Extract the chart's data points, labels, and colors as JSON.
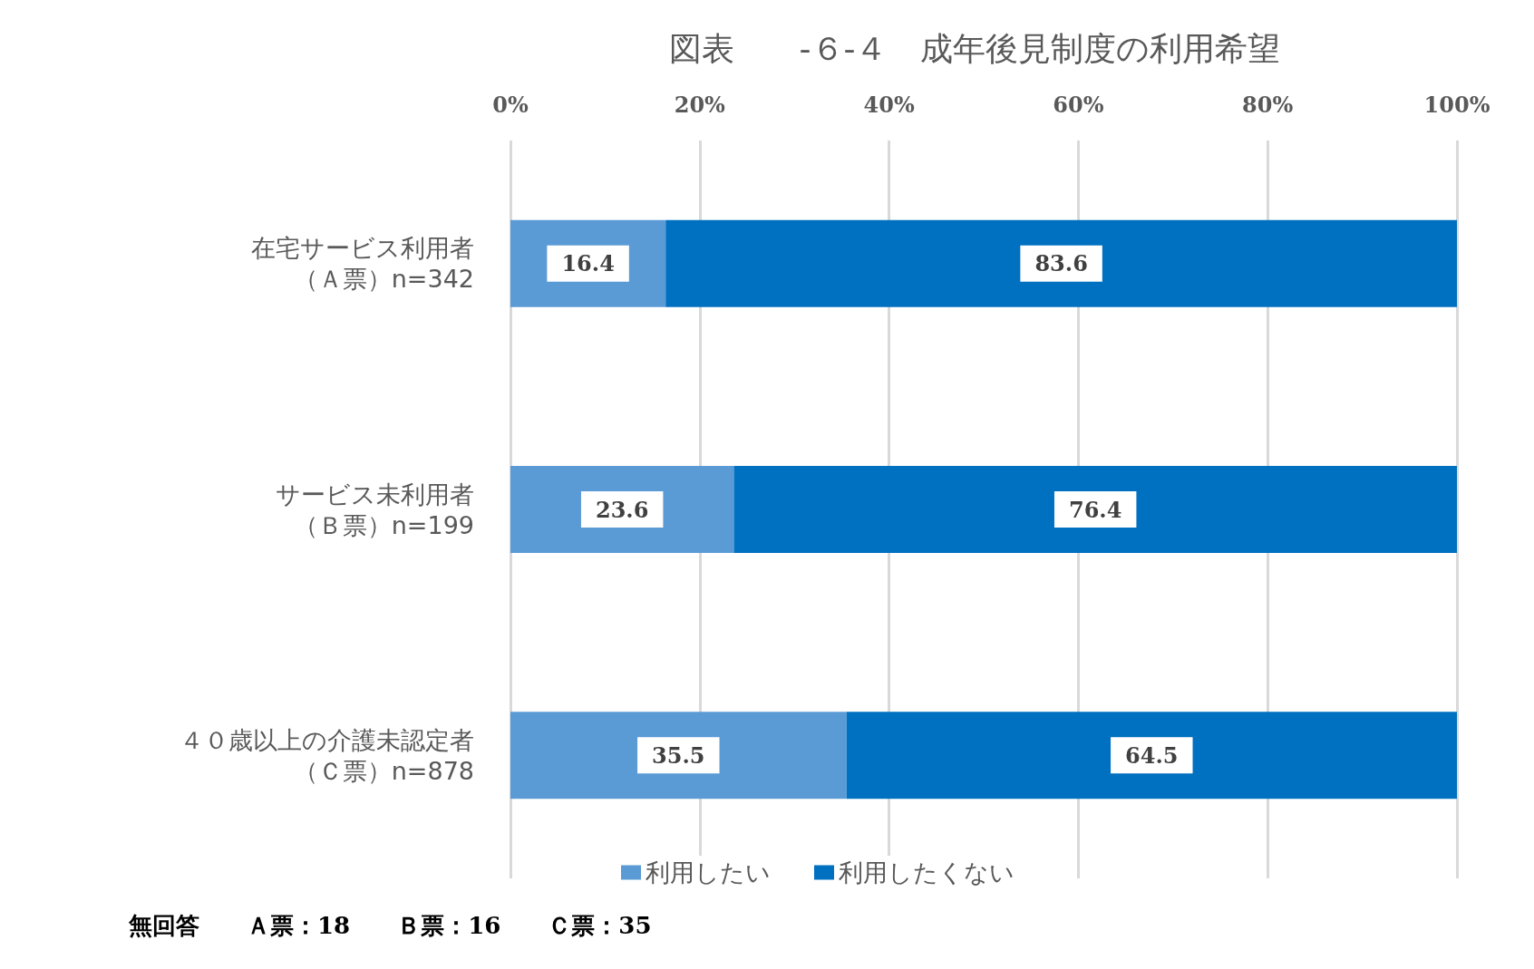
{
  "chart_data": {
    "type": "bar",
    "orientation": "horizontal",
    "stacked": true,
    "title": "図表　　-６-４　成年後見制度の利用希望",
    "categories": [
      "在宅サービス利用者（Ａ票）n=342",
      "サービス未利用者（Ｂ票）n=199",
      "４０歳以上の介護未認定者（Ｃ票）n=878"
    ],
    "series": [
      {
        "name": "利用したい",
        "color": "#5b9bd5",
        "values": [
          16.4,
          23.6,
          35.5
        ]
      },
      {
        "name": "利用したくない",
        "color": "#0070c0",
        "values": [
          83.6,
          76.4,
          64.5
        ]
      }
    ],
    "xlim": [
      0,
      100
    ],
    "xticks": [
      {
        "value": 0,
        "label": "0%"
      },
      {
        "value": 20,
        "label": "20%"
      },
      {
        "value": 40,
        "label": "40%"
      },
      {
        "value": 60,
        "label": "60%"
      },
      {
        "value": 80,
        "label": "80%"
      },
      {
        "value": 100,
        "label": "100%"
      }
    ],
    "grid": "x",
    "legend": "bottom",
    "data_labels": true,
    "annotations": [
      "無回答　　Ａ票：18　　Ｂ票：16　　Ｃ票：35"
    ]
  }
}
